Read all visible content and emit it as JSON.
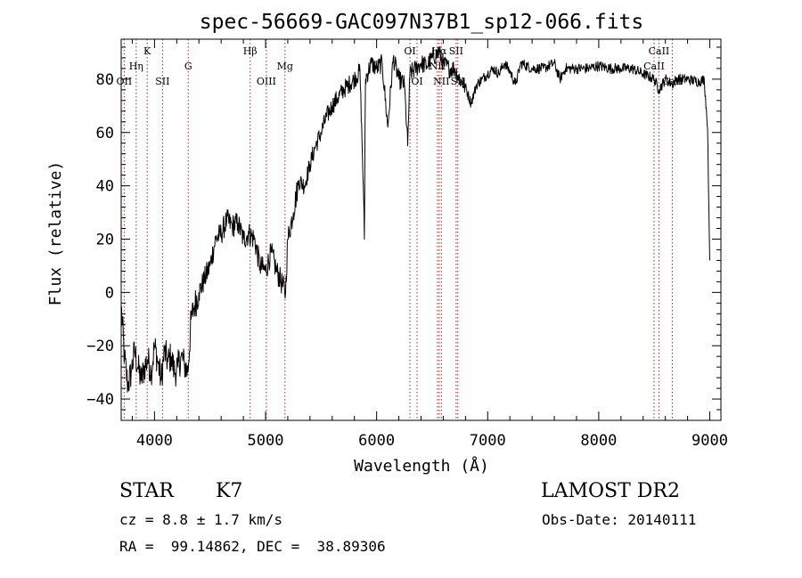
{
  "chart_data": {
    "type": "line",
    "title": "spec-56669-GAC097N37B1_sp12-066.fits",
    "xlabel": "Wavelength (Å)",
    "ylabel": "Flux (relative)",
    "xlim": [
      3700,
      9100
    ],
    "ylim": [
      -48,
      95
    ],
    "xticks": [
      4000,
      5000,
      6000,
      7000,
      8000,
      9000
    ],
    "xtick_labels": [
      "4000",
      "5000",
      "6000",
      "7000",
      "8000",
      "9000"
    ],
    "yticks": [
      -40,
      -20,
      0,
      20,
      40,
      60,
      80
    ],
    "ytick_labels": [
      "−40",
      "−20",
      "0",
      "20",
      "40",
      "60",
      "80"
    ],
    "grid": false,
    "line_color": "#000000",
    "marker_color": "#b22222",
    "spectrum": {
      "x": [
        3700,
        3730,
        3760,
        3790,
        3820,
        3850,
        3880,
        3910,
        3940,
        3970,
        4000,
        4030,
        4060,
        4090,
        4120,
        4150,
        4180,
        4210,
        4240,
        4270,
        4300,
        4330,
        4360,
        4400,
        4450,
        4500,
        4550,
        4600,
        4650,
        4700,
        4750,
        4800,
        4850,
        4900,
        4950,
        5000,
        5050,
        5100,
        5150,
        5180,
        5200,
        5250,
        5300,
        5350,
        5400,
        5450,
        5500,
        5550,
        5600,
        5650,
        5700,
        5750,
        5800,
        5850,
        5880,
        5890,
        5895,
        5900,
        5950,
        6000,
        6050,
        6100,
        6150,
        6200,
        6250,
        6280,
        6300,
        6350,
        6400,
        6450,
        6500,
        6563,
        6600,
        6650,
        6700,
        6750,
        6800,
        6850,
        6880,
        6900,
        6950,
        7000,
        7050,
        7100,
        7150,
        7200,
        7250,
        7300,
        7400,
        7500,
        7600,
        7650,
        7700,
        7800,
        7900,
        8000,
        8100,
        8200,
        8300,
        8400,
        8500,
        8542,
        8600,
        8662,
        8700,
        8800,
        8900,
        8950,
        8980,
        9000
      ],
      "y": [
        -5,
        -25,
        -35,
        -30,
        -22,
        -28,
        -33,
        -28,
        -25,
        -30,
        -20,
        -26,
        -33,
        -22,
        -26,
        -24,
        -30,
        -28,
        -24,
        -27,
        -30,
        -10,
        -5,
        0,
        5,
        10,
        20,
        22,
        27,
        25,
        26,
        20,
        22,
        20,
        10,
        8,
        15,
        8,
        3,
        0,
        20,
        30,
        42,
        40,
        48,
        55,
        60,
        66,
        70,
        73,
        76,
        78,
        80,
        83,
        40,
        20,
        60,
        80,
        86,
        84,
        86,
        62,
        88,
        80,
        78,
        55,
        82,
        84,
        86,
        85,
        88,
        90,
        86,
        84,
        84,
        80,
        77,
        71,
        75,
        78,
        80,
        82,
        84,
        82,
        86,
        83,
        78,
        86,
        84,
        84,
        86,
        80,
        84,
        84,
        84,
        85,
        84,
        84,
        84,
        82,
        80,
        76,
        80,
        78,
        80,
        80,
        79,
        80,
        62,
        12
      ]
    },
    "line_markers": [
      {
        "label": "OII",
        "x": 3727,
        "row": 3
      },
      {
        "label": "Hη",
        "x": 3835,
        "row": 2
      },
      {
        "label": "K",
        "x": 3934,
        "row": 1
      },
      {
        "label": "SII",
        "x": 4072,
        "row": 3
      },
      {
        "label": "G",
        "x": 4304,
        "row": 2
      },
      {
        "label": "Hβ",
        "x": 4861,
        "row": 1
      },
      {
        "label": "OIII",
        "x": 5007,
        "row": 3
      },
      {
        "label": "Mg",
        "x": 5175,
        "row": 2
      },
      {
        "label": "OI",
        "x": 6300,
        "row": 1
      },
      {
        "label": "OI",
        "x": 6364,
        "row": 3
      },
      {
        "label": "NII",
        "x": 6548,
        "row": 2
      },
      {
        "label": "Hα",
        "x": 6563,
        "row": 1
      },
      {
        "label": "NII",
        "x": 6583,
        "row": 3
      },
      {
        "label": "SII",
        "x": 6716,
        "row": 1
      },
      {
        "label": "SII",
        "x": 6731,
        "row": 3
      },
      {
        "label": "CaII",
        "x": 8498,
        "row": 2
      },
      {
        "label": "CaII",
        "x": 8542,
        "row": 1
      },
      {
        "label": "CaII",
        "x": 8662,
        "row": 3
      }
    ]
  },
  "info": {
    "class": "STAR",
    "subclass": "K7",
    "survey": "LAMOST DR2",
    "cz": "cz = 8.8 ± 1.7 km/s",
    "obs_date": "Obs-Date: 20140111",
    "coords": "RA =  99.14862, DEC =  38.89306"
  }
}
